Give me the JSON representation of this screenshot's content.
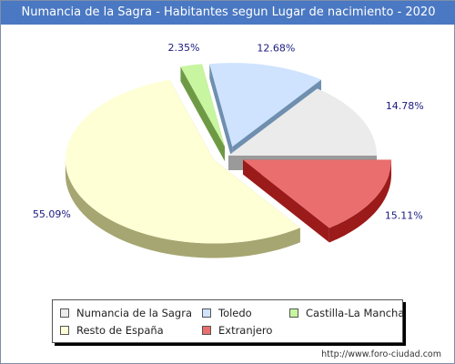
{
  "header": {
    "title": "Numancia de la Sagra - Habitantes segun Lugar de nacimiento - 2020"
  },
  "chart_data": {
    "type": "pie",
    "title": "Numancia de la Sagra - Habitantes segun Lugar de nacimiento - 2020",
    "slices": [
      {
        "label": "Numancia de la Sagra",
        "value": 14.78,
        "display": "14.78%",
        "color": "#ebebeb",
        "side_color": "#9a9a9a",
        "exploded": false
      },
      {
        "label": "Toledo",
        "value": 12.68,
        "display": "12.68%",
        "color": "#cfe3ff",
        "side_color": "#6f8fb0",
        "exploded": true
      },
      {
        "label": "Castilla-La Mancha",
        "value": 2.35,
        "display": "2.35%",
        "color": "#c8f5a0",
        "side_color": "#6f9a45",
        "exploded": true
      },
      {
        "label": "Resto de España",
        "value": 55.09,
        "display": "55.09%",
        "color": "#ffffd6",
        "side_color": "#a6a672",
        "exploded": true
      },
      {
        "label": "Extranjero",
        "value": 15.11,
        "display": "15.11%",
        "color": "#ea6e6e",
        "side_color": "#9b1a1a",
        "exploded": true
      }
    ],
    "legend_position": "bottom"
  },
  "legend": {
    "items": [
      {
        "label": "Numancia de la Sagra",
        "color": "#ebebeb"
      },
      {
        "label": "Toledo",
        "color": "#cfe3ff"
      },
      {
        "label": "Castilla-La Mancha",
        "color": "#c8f5a0"
      },
      {
        "label": "Resto de España",
        "color": "#ffffd6"
      },
      {
        "label": "Extranjero",
        "color": "#ea6e6e"
      }
    ]
  },
  "footer": {
    "url": "http://www.foro-ciudad.com"
  }
}
